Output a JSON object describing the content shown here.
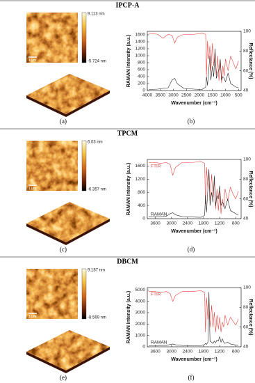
{
  "sections": [
    {
      "title": "IPCP-A",
      "afm_max": "9.113 nm",
      "afm_min": "-5.724 nm",
      "scale": "1 μm",
      "panel_labels": [
        "(a)",
        "(b)"
      ]
    },
    {
      "title": "TPCM",
      "afm_max": "6.03 nm",
      "afm_min": "-6.357 nm",
      "scale": "1 μm",
      "panel_labels": [
        "(c)",
        "(d)"
      ]
    },
    {
      "title": "DBCM",
      "afm_max": "9.187 nm",
      "afm_min": "-8.569 nm",
      "scale": "1 μm",
      "panel_labels": [
        "(e)",
        "(f)"
      ]
    }
  ],
  "chart_data": [
    {
      "type": "line",
      "xlabel": "Wavenumber (cm⁻¹)",
      "ylabel": "RAMAN Intensity (a.u.)",
      "y2label": "Reflectance (%)",
      "xlim": [
        4000,
        400
      ],
      "xticks": [
        4000,
        3500,
        3000,
        2500,
        2000,
        1500,
        1000,
        500
      ],
      "ylim": [
        0,
        1700
      ],
      "yticks": [
        0,
        200,
        400,
        600,
        800,
        1000,
        1200,
        1400,
        1600
      ],
      "y2lim": [
        40,
        100
      ],
      "y2ticks": [
        40,
        60,
        80,
        100
      ],
      "x": [
        3950,
        3600,
        3400,
        3200,
        3050,
        2950,
        2850,
        2600,
        2200,
        1900,
        1760,
        1730,
        1690,
        1640,
        1600,
        1560,
        1500,
        1450,
        1400,
        1350,
        1300,
        1250,
        1200,
        1150,
        1100,
        1050,
        1000,
        900,
        800,
        700,
        600,
        500
      ],
      "series": [
        {
          "color": "#e8413c",
          "axis": "y2",
          "values": [
            98,
            97,
            93,
            97,
            96,
            88,
            94,
            97,
            97,
            98,
            97,
            55,
            90,
            72,
            85,
            60,
            88,
            65,
            80,
            55,
            75,
            50,
            70,
            48,
            65,
            55,
            72,
            60,
            75,
            68,
            62,
            70
          ]
        },
        {
          "color": "#222222",
          "values": [
            30,
            40,
            60,
            80,
            300,
            350,
            200,
            60,
            40,
            30,
            100,
            400,
            150,
            600,
            1000,
            300,
            700,
            400,
            1200,
            350,
            500,
            600,
            900,
            300,
            400,
            350,
            250,
            500,
            200,
            150,
            100,
            80
          ]
        }
      ]
    },
    {
      "type": "line",
      "xlabel": "Wavenumber (cm⁻¹)",
      "ylabel": "RAMAN Intensity (a.u.)",
      "y2label": "Reflectance (%)",
      "xlim": [
        3900,
        400
      ],
      "xticks": [
        3600,
        3000,
        2400,
        1800,
        1200,
        600
      ],
      "ylim": [
        0,
        1800
      ],
      "yticks": [
        0,
        400,
        800,
        1200,
        1600
      ],
      "y2lim": [
        40,
        100
      ],
      "y2ticks": [
        40,
        60,
        80,
        100
      ],
      "x": [
        3850,
        3600,
        3400,
        3200,
        3050,
        2950,
        2850,
        2600,
        2200,
        1900,
        1760,
        1730,
        1690,
        1640,
        1600,
        1560,
        1500,
        1450,
        1400,
        1350,
        1300,
        1250,
        1200,
        1150,
        1100,
        1050,
        1000,
        900,
        800,
        700,
        600,
        500
      ],
      "series": [
        {
          "name": "FTIR",
          "color": "#e8413c",
          "axis": "y2",
          "values": [
            97,
            97,
            96,
            97,
            95,
            84,
            92,
            97,
            97,
            98,
            96,
            55,
            92,
            70,
            88,
            58,
            85,
            62,
            78,
            50,
            70,
            48,
            68,
            45,
            60,
            52,
            70,
            58,
            72,
            65,
            60,
            68
          ]
        },
        {
          "name": "RAMAN",
          "color": "#222222",
          "values": [
            60,
            60,
            60,
            70,
            150,
            180,
            120,
            60,
            50,
            40,
            100,
            700,
            200,
            900,
            1500,
            400,
            800,
            500,
            1300,
            400,
            700,
            600,
            1000,
            400,
            500,
            450,
            300,
            600,
            250,
            200,
            150,
            120
          ]
        }
      ]
    },
    {
      "type": "line",
      "xlabel": "Wavenumber (cm⁻¹)",
      "ylabel": "RAMAN Intensity (a.u.)",
      "y2label": "Reflectance (%)",
      "xlim": [
        3900,
        400
      ],
      "xticks": [
        3600,
        3000,
        2400,
        1800,
        1200,
        600
      ],
      "ylim": [
        0,
        5200
      ],
      "yticks": [
        0,
        1000,
        2000,
        3000,
        4000,
        5000
      ],
      "y2lim": [
        40,
        100
      ],
      "y2ticks": [
        40,
        60,
        80,
        100
      ],
      "x": [
        3850,
        3600,
        3400,
        3200,
        3050,
        2950,
        2850,
        2600,
        2200,
        1900,
        1760,
        1730,
        1690,
        1640,
        1600,
        1560,
        1500,
        1450,
        1400,
        1350,
        1300,
        1250,
        1200,
        1150,
        1100,
        1050,
        1000,
        900,
        800,
        700,
        600,
        500
      ],
      "series": [
        {
          "name": "FTIR",
          "color": "#e8413c",
          "axis": "y2",
          "values": [
            96,
            96,
            95,
            96,
            94,
            86,
            92,
            96,
            96,
            97,
            95,
            55,
            90,
            68,
            85,
            60,
            82,
            60,
            75,
            55,
            72,
            58,
            70,
            55,
            65,
            60,
            72,
            62,
            70,
            66,
            62,
            68
          ]
        },
        {
          "name": "RAMAN",
          "color": "#222222",
          "values": [
            100,
            100,
            120,
            120,
            200,
            250,
            180,
            120,
            100,
            100,
            200,
            300,
            200,
            400,
            4800,
            500,
            400,
            300,
            500,
            350,
            600,
            500,
            900,
            400,
            700,
            400,
            300,
            400,
            250,
            200,
            150,
            120
          ]
        }
      ]
    }
  ]
}
